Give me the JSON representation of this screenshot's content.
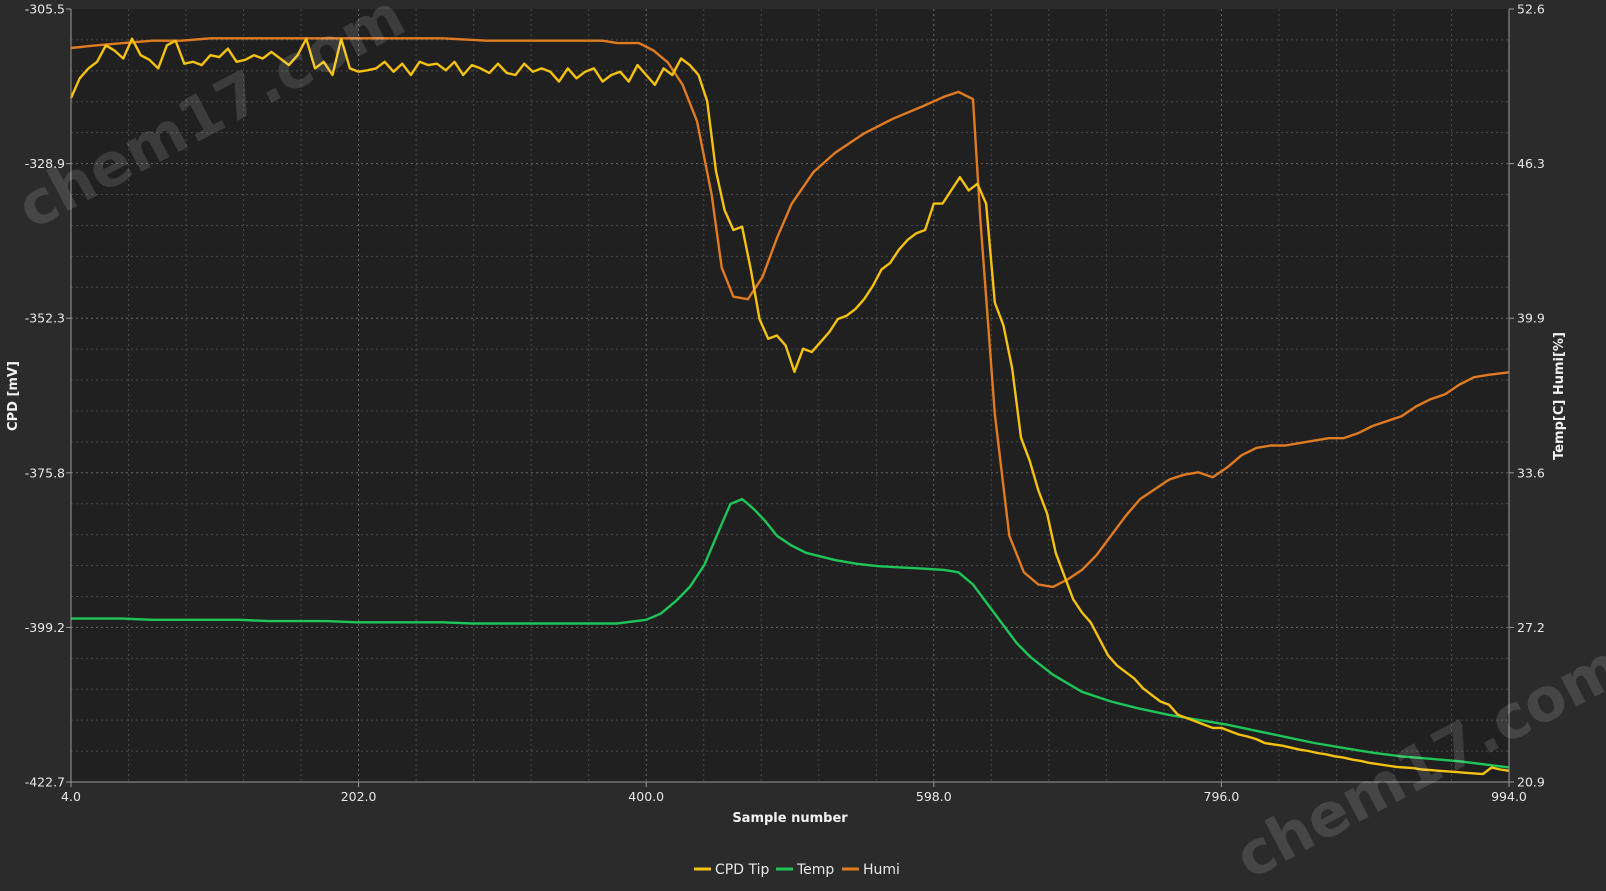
{
  "watermark": {
    "text": "chem17.com"
  },
  "colors": {
    "background": "#2b2b2b",
    "plot_background": "#202020",
    "cpd": "#f5c211",
    "temp": "#1ec659",
    "humi": "#e07b22"
  },
  "chart_data": {
    "type": "line",
    "xlabel": "Sample number",
    "ylabel_left": "CPD [mV]",
    "ylabel_right": "Temp[C] Humi[%]",
    "xlim": [
      4.0,
      994.0
    ],
    "ylim_left": [
      -422.7,
      -305.5
    ],
    "ylim_right": [
      20.9,
      52.6
    ],
    "x_ticks": [
      "4.0",
      "202.0",
      "400.0",
      "598.0",
      "796.0",
      "994.0"
    ],
    "y_ticks_left": [
      "-305.5",
      "-328.9",
      "-352.3",
      "-375.8",
      "-399.2",
      "-422.7"
    ],
    "y_ticks_right": [
      "52.6",
      "46.3",
      "39.9",
      "33.6",
      "27.2",
      "20.9"
    ],
    "grid": true,
    "legend_position": "bottom-center",
    "series": [
      {
        "name": "CPD Tip",
        "axis": "left",
        "x": [
          4,
          10,
          16,
          22,
          28,
          34,
          40,
          46,
          52,
          58,
          64,
          70,
          76,
          82,
          88,
          94,
          100,
          106,
          112,
          118,
          124,
          130,
          136,
          142,
          148,
          154,
          160,
          166,
          172,
          178,
          184,
          190,
          196,
          202,
          208,
          214,
          220,
          226,
          232,
          238,
          244,
          250,
          256,
          262,
          268,
          274,
          280,
          286,
          292,
          298,
          304,
          310,
          316,
          322,
          328,
          334,
          340,
          346,
          352,
          358,
          364,
          370,
          376,
          382,
          388,
          394,
          400,
          406,
          412,
          418,
          424,
          430,
          436,
          442,
          448,
          454,
          460,
          466,
          472,
          478,
          484,
          490,
          496,
          502,
          508,
          514,
          520,
          526,
          532,
          538,
          544,
          550,
          556,
          562,
          568,
          574,
          580,
          586,
          592,
          598,
          604,
          610,
          616,
          622,
          628,
          634,
          640,
          646,
          652,
          658,
          664,
          670,
          676,
          682,
          688,
          694,
          700,
          706,
          712,
          718,
          724,
          730,
          736,
          742,
          748,
          754,
          760,
          766,
          772,
          778,
          784,
          790,
          796,
          802,
          808,
          814,
          820,
          826,
          832,
          838,
          844,
          850,
          856,
          862,
          868,
          874,
          880,
          886,
          892,
          898,
          904,
          910,
          916,
          922,
          928,
          934,
          940,
          946,
          952,
          958,
          964,
          970,
          976,
          982,
          988,
          994
        ],
        "values": [
          -319.0,
          -316.0,
          -314.5,
          -313.5,
          -311.0,
          -311.8,
          -313.0,
          -310.0,
          -312.5,
          -313.2,
          -314.5,
          -311.0,
          -310.3,
          -313.8,
          -313.5,
          -314.0,
          -312.5,
          -312.8,
          -311.5,
          -313.5,
          -313.2,
          -312.5,
          -313.0,
          -312.0,
          -313.0,
          -314.0,
          -312.5,
          -310.0,
          -314.5,
          -313.5,
          -315.5,
          -310.0,
          -314.5,
          -315.0,
          -314.8,
          -314.5,
          -313.5,
          -315.0,
          -313.8,
          -315.5,
          -313.5,
          -314.0,
          -313.8,
          -314.8,
          -313.5,
          -315.5,
          -314.0,
          -314.5,
          -315.2,
          -313.8,
          -315.2,
          -315.5,
          -313.8,
          -315.0,
          -314.5,
          -315.0,
          -316.5,
          -314.5,
          -316.0,
          -315.0,
          -314.5,
          -316.5,
          -315.5,
          -315.0,
          -316.5,
          -314.0,
          -315.5,
          -317.0,
          -314.5,
          -315.5,
          -313.0,
          -314.0,
          -315.5,
          -319.5,
          -330.0,
          -336.0,
          -339.0,
          -338.5,
          -345.0,
          -352.5,
          -355.5,
          -355.0,
          -356.5,
          -360.5,
          -357.0,
          -357.5,
          -356.0,
          -354.5,
          -352.5,
          -352.0,
          -351.0,
          -349.5,
          -347.5,
          -345.0,
          -344.0,
          -342.0,
          -340.5,
          -339.5,
          -339.0,
          -335.0,
          -335.0,
          -333.0,
          -331.0,
          -333.0,
          -332.0,
          -335.0,
          -350.0,
          -353.5,
          -360.0,
          -370.5,
          -374.0,
          -378.5,
          -382.0,
          -388.0,
          -391.5,
          -395.0,
          -397.0,
          -398.5,
          -401.0,
          -403.5,
          -405.0,
          -406.0,
          -407.0,
          -408.5,
          -409.5,
          -410.5,
          -411.0,
          -412.5,
          -413.0,
          -413.5,
          -414.0,
          -414.5,
          -414.5,
          -415.0,
          -415.5,
          -415.8,
          -416.2,
          -416.8,
          -417.0,
          -417.2,
          -417.5,
          -417.8,
          -418.0,
          -418.3,
          -418.5,
          -418.8,
          -419.0,
          -419.3,
          -419.5,
          -419.8,
          -420.0,
          -420.2,
          -420.4,
          -420.5,
          -420.6,
          -420.8,
          -420.9,
          -421.0,
          -421.1,
          -421.2,
          -421.3,
          -421.4,
          -421.5,
          -420.5,
          -420.8,
          -421.0
        ]
      },
      {
        "name": "Temp",
        "axis": "right",
        "x": [
          4,
          20,
          40,
          60,
          80,
          100,
          120,
          140,
          160,
          180,
          200,
          220,
          240,
          260,
          280,
          300,
          320,
          340,
          360,
          380,
          400,
          410,
          420,
          430,
          440,
          450,
          458,
          466,
          474,
          482,
          490,
          500,
          510,
          520,
          530,
          545,
          560,
          575,
          590,
          605,
          615,
          625,
          635,
          645,
          655,
          665,
          680,
          700,
          720,
          740,
          760,
          780,
          800,
          820,
          840,
          860,
          880,
          900,
          920,
          940,
          960,
          980,
          994
        ],
        "values": [
          27.6,
          27.6,
          27.6,
          27.55,
          27.55,
          27.55,
          27.55,
          27.5,
          27.5,
          27.5,
          27.45,
          27.45,
          27.45,
          27.45,
          27.4,
          27.4,
          27.4,
          27.4,
          27.4,
          27.4,
          27.55,
          27.8,
          28.3,
          28.9,
          29.8,
          31.2,
          32.3,
          32.5,
          32.1,
          31.6,
          31.0,
          30.6,
          30.3,
          30.15,
          30.0,
          29.85,
          29.75,
          29.7,
          29.65,
          29.6,
          29.5,
          29.0,
          28.2,
          27.4,
          26.6,
          26.0,
          25.3,
          24.6,
          24.2,
          23.9,
          23.65,
          23.45,
          23.25,
          23.0,
          22.75,
          22.5,
          22.3,
          22.1,
          21.95,
          21.85,
          21.75,
          21.6,
          21.5
        ]
      },
      {
        "name": "Humi",
        "axis": "right",
        "x": [
          4,
          20,
          40,
          60,
          80,
          100,
          140,
          180,
          220,
          260,
          290,
          320,
          350,
          370,
          380,
          395,
          405,
          415,
          425,
          435,
          445,
          452,
          460,
          470,
          480,
          490,
          500,
          515,
          530,
          550,
          570,
          590,
          605,
          615,
          625,
          630,
          640,
          650,
          660,
          670,
          680,
          690,
          700,
          710,
          720,
          730,
          740,
          750,
          760,
          770,
          780,
          790,
          800,
          810,
          820,
          830,
          840,
          850,
          860,
          870,
          880,
          890,
          900,
          910,
          920,
          930,
          940,
          950,
          960,
          970,
          980,
          994
        ],
        "values": [
          51.0,
          51.1,
          51.2,
          51.3,
          51.3,
          51.4,
          51.4,
          51.4,
          51.4,
          51.4,
          51.3,
          51.3,
          51.3,
          51.3,
          51.2,
          51.2,
          50.9,
          50.4,
          49.5,
          48.0,
          45.0,
          42.0,
          40.8,
          40.7,
          41.6,
          43.2,
          44.6,
          45.9,
          46.7,
          47.5,
          48.1,
          48.6,
          49.0,
          49.2,
          48.9,
          44.0,
          36.0,
          31.0,
          29.5,
          29.0,
          28.9,
          29.2,
          29.6,
          30.2,
          31.0,
          31.8,
          32.5,
          32.9,
          33.3,
          33.5,
          33.6,
          33.4,
          33.8,
          34.3,
          34.6,
          34.7,
          34.7,
          34.8,
          34.9,
          35.0,
          35.0,
          35.2,
          35.5,
          35.7,
          35.9,
          36.3,
          36.6,
          36.8,
          37.2,
          37.5,
          37.6,
          37.7
        ]
      }
    ]
  }
}
